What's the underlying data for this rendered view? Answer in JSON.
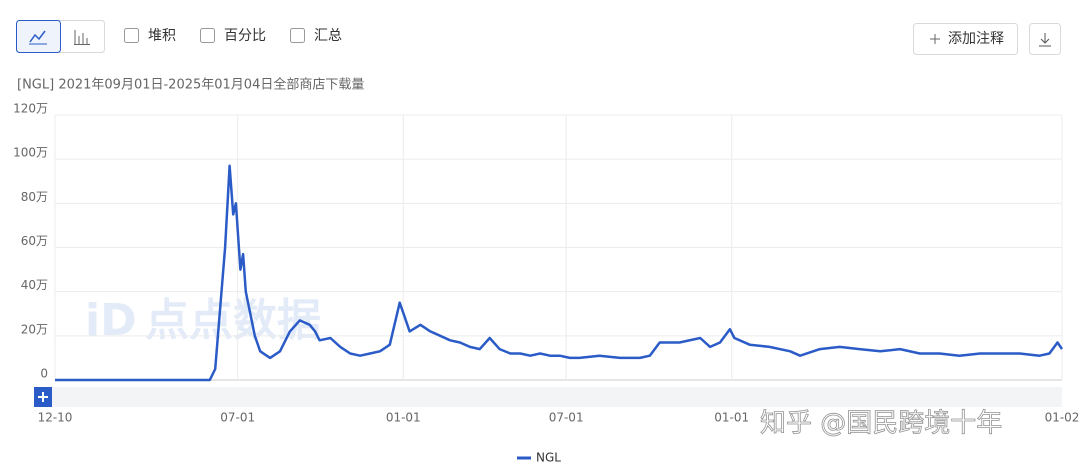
{
  "toolbar": {
    "checkboxes": [
      "堆积",
      "百分比",
      "汇总"
    ],
    "annotate": "添加注释"
  },
  "watermarks": [
    "点点数据",
    "知乎 @国民跨境十年"
  ],
  "chart_data": {
    "type": "line",
    "subtitle": "[NGL] 2021年09月01日-2025年01月04日全部商店下载量",
    "x": [
      0,
      50,
      106,
      172,
      178,
      183,
      189,
      194,
      198,
      201,
      206,
      209,
      212,
      217,
      222,
      228,
      239,
      250,
      261,
      272,
      283,
      289,
      294,
      306,
      317,
      328,
      339,
      350,
      361,
      372,
      383,
      389,
      394,
      406,
      417,
      428,
      439,
      450,
      461,
      472,
      483,
      494,
      506,
      517,
      528,
      539,
      550,
      561,
      572,
      583,
      605,
      628,
      650,
      661,
      672,
      694,
      717,
      728,
      739,
      750,
      755,
      772,
      794,
      817,
      828,
      850,
      872,
      894,
      917,
      939,
      961,
      983,
      1005,
      1028,
      1050,
      1072,
      1094,
      1105,
      1114,
      1119
    ],
    "series": [
      {
        "name": "NGL",
        "color": "#2a5bc7",
        "values": [
          0,
          0,
          0,
          0,
          5,
          30,
          60,
          97,
          75,
          80,
          50,
          57,
          40,
          30,
          20,
          13,
          10,
          13,
          22,
          27,
          25,
          22,
          18,
          19,
          15,
          12,
          11,
          12,
          13,
          16,
          35,
          28,
          22,
          25,
          22,
          20,
          18,
          17,
          15,
          14,
          19,
          14,
          12,
          12,
          11,
          12,
          11,
          11,
          10,
          10,
          11,
          10,
          10,
          11,
          17,
          17,
          19,
          15,
          17,
          23,
          19,
          16,
          15,
          13,
          11,
          14,
          15,
          14,
          13,
          14,
          12,
          12,
          11,
          12,
          12,
          12,
          11,
          12,
          17,
          14
        ]
      }
    ],
    "xlim": [
      0,
      1119
    ],
    "xticks": [
      {
        "value": 0,
        "label": "12-10"
      },
      {
        "value": 203,
        "label": "07-01"
      },
      {
        "value": 387,
        "label": "01-01"
      },
      {
        "value": 568,
        "label": "07-01"
      },
      {
        "value": 752,
        "label": "01-01"
      },
      {
        "value": 1119,
        "label": "01-02"
      }
    ],
    "ylim": [
      0,
      120
    ],
    "yticks": [
      0,
      {
        "value": 20,
        "label": "20万"
      },
      {
        "value": 40,
        "label": "40万"
      },
      {
        "value": 60,
        "label": "60万"
      },
      {
        "value": 80,
        "label": "80万"
      },
      {
        "value": 100,
        "label": "100万"
      },
      {
        "value": 120,
        "label": "120万"
      }
    ],
    "grid": true,
    "legend": "bottom"
  }
}
